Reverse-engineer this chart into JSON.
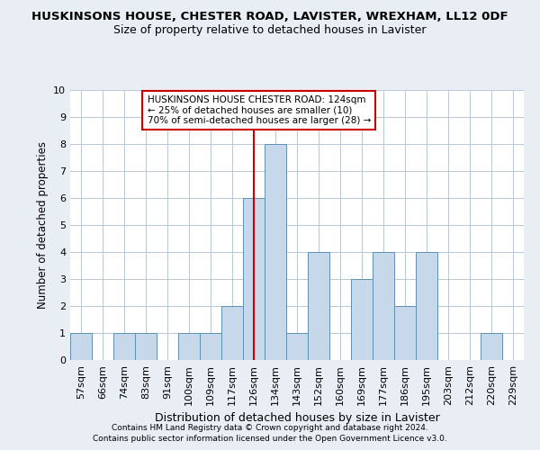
{
  "title": "HUSKINSONS HOUSE, CHESTER ROAD, LAVISTER, WREXHAM, LL12 0DF",
  "subtitle": "Size of property relative to detached houses in Lavister",
  "xlabel": "Distribution of detached houses by size in Lavister",
  "ylabel": "Number of detached properties",
  "categories": [
    "57sqm",
    "66sqm",
    "74sqm",
    "83sqm",
    "91sqm",
    "100sqm",
    "109sqm",
    "117sqm",
    "126sqm",
    "134sqm",
    "143sqm",
    "152sqm",
    "160sqm",
    "169sqm",
    "177sqm",
    "186sqm",
    "195sqm",
    "203sqm",
    "212sqm",
    "220sqm",
    "229sqm"
  ],
  "values": [
    1,
    0,
    1,
    1,
    0,
    1,
    1,
    2,
    6,
    8,
    1,
    4,
    0,
    3,
    4,
    2,
    4,
    0,
    0,
    1,
    0
  ],
  "bar_color": "#c8d8eb",
  "bar_edge_color": "#6090b0",
  "vline_x": 8.0,
  "vline_color": "#cc0000",
  "ylim": [
    0,
    10
  ],
  "yticks": [
    0,
    1,
    2,
    3,
    4,
    5,
    6,
    7,
    8,
    9,
    10
  ],
  "annotation_text_line1": "HUSKINSONS HOUSE CHESTER ROAD: 124sqm",
  "annotation_text_line2": "← 25% of detached houses are smaller (10)",
  "annotation_text_line3": "70% of semi-detached houses are larger (28) →",
  "footnote1": "Contains HM Land Registry data © Crown copyright and database right 2024.",
  "footnote2": "Contains public sector information licensed under the Open Government Licence v3.0.",
  "background_color": "#e8eef4",
  "plot_background_color": "#ffffff",
  "grid_color": "#b8c8d8",
  "title_fontsize": 9.5,
  "subtitle_fontsize": 9,
  "ylabel_fontsize": 8.5,
  "xlabel_fontsize": 9,
  "tick_fontsize": 8,
  "annot_fontsize": 7.5,
  "footnote_fontsize": 6.5
}
